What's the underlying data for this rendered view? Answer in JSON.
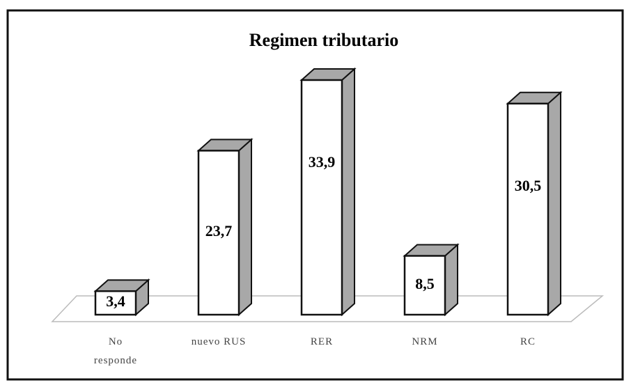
{
  "chart_data": {
    "type": "bar3d",
    "title": "Regimen tributario",
    "categories": [
      "No responde",
      "nuevo RUS",
      "RER",
      "NRM",
      "RC"
    ],
    "values": [
      3.4,
      23.7,
      33.9,
      8.5,
      30.5
    ],
    "value_labels": [
      "3,4",
      "23,7",
      "33,9",
      "8,5",
      "30,5"
    ],
    "color": "#ffffff",
    "side_color": "#a8a8a8"
  }
}
